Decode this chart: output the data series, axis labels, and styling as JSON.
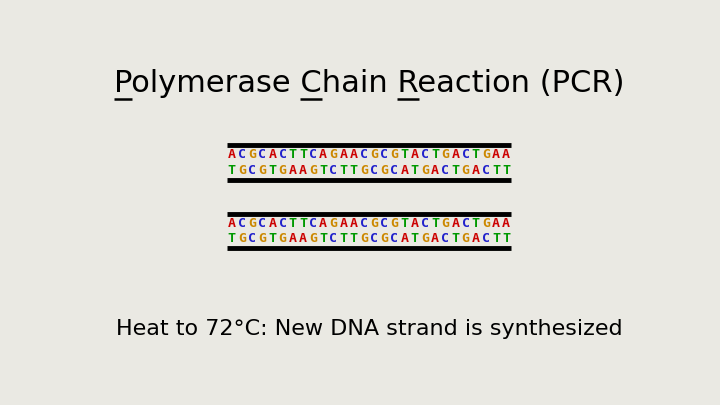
{
  "title": "Polymerase Chain Reaction (PCR)",
  "background_color": "#eae9e3",
  "sequence1_top": "ACGCACTTCAGAACGCGTACTGACTGAA",
  "sequence1_bot": "TGCGTGAAGTCTTGCGCATGACTGACTT",
  "sequence2_top": "ACGCACTTCAGAACGCGTACTGACTGAA",
  "sequence2_bot": "TGCGTGAAGTCTTGCGCATGACTGACTT",
  "nucleotide_colors": {
    "A": "#cc0000",
    "C": "#2222cc",
    "G": "#cc8800",
    "T": "#009900"
  },
  "caption": "Heat to 72°C: New DNA strand is synthesized",
  "bar_color": "#000000",
  "seq_fontsize": 9.5,
  "caption_fontsize": 16,
  "title_fontsize": 22
}
